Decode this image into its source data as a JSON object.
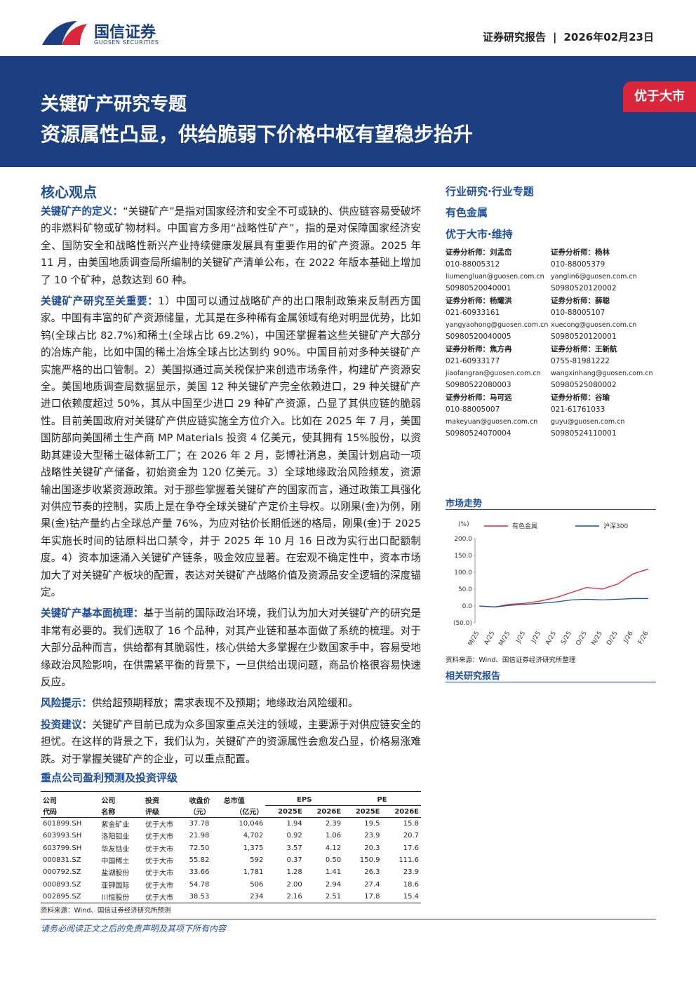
{
  "header": {
    "logo_cn": "国信证券",
    "logo_en": "GUOSEN SECURITIES",
    "report_type": "证券研究报告",
    "date": "2026年02月23日",
    "series_title": "关键矿产研究专题",
    "main_title": "资源属性凸显，供给脆弱下价格中枢有望稳步抬升",
    "rating": "优于大市"
  },
  "core": {
    "title": "核心观点",
    "paragraphs": [
      {
        "label": "关键矿产的定义：",
        "text": "“关键矿产”是指对国家经济和安全不可或缺的、供应链容易受破坏的非燃料矿物或矿物材料。中国官方多用“战略性矿产”，指的是对保障国家经济安全、国防安全和战略性新兴产业持续健康发展具有重要作用的矿产资源。2025 年 11 月，由美国地质调查局所编制的关键矿产清单公布，在 2022 年版本基础上增加了 10 个矿种，总数达到 60 种。"
      },
      {
        "label": "关键矿产研究至关重要：",
        "text": "1）中国可以通过战略矿产的出口限制政策来反制西方国家。中国有丰富的矿产资源储量，尤其是在多种稀有金属领域有绝对明显优势，比如钨(全球占比 82.7%)和稀土(全球占比 69.2%)，中国还掌握着这些关键矿产大部分的冶炼产能，比如中国的稀土冶炼全球占比达到约 90%。中国目前对多种关键矿产实施严格的出口管制。2）美国拟通过高关税保护来创造市场条件，构建矿产资源安全。美国地质调查局数据显示，美国 12 种关键矿产完全依赖进口，29 种关键矿产进口依赖度超过 50%，其从中国至少进口 29 种矿产资源，凸显了其供应链的脆弱性。目前美国政府对关键矿产供应链实施全方位介入。比如在 2025 年 7 月，美国国防部向美国稀土生产商 MP Materials 投资 4 亿美元，使其拥有 15%股份，以资助其建设大型稀土磁体新工厂；在 2026 年 2 月，彭博社消息，美国计划启动一项战略性关键矿产储备，初始资金为 120 亿美元。3）全球地缘政治风险频发，资源输出国逐步收紧资源政策。对于那些掌握着关键矿产的国家而言，通过政策工具强化对供应节奏的控制，实质上是在争夺全球关键矿产定价主导权。以刚果(金)为例，刚果(金)钴产量约占全球总产量 76%，为应对钴价长期低迷的格局，刚果(金)于 2025 年实施长时间的钴原料出口禁令，并于 2025 年 10 月 16 日改为实行出口配额制度。4）资本加速涌入关键矿产链条，吸金效应显著。在宏观不确定性中，资本市场加大了对关键矿产板块的配置，表达对关键矿产战略价值及资源品安全逻辑的深度锚定。"
      },
      {
        "label": "关键矿产基本面梳理：",
        "text": "基于当前的国际政治环境，我们认为加大对关键矿产的研究是非常有必要的。我们选取了 16 个品种，对其产业链和基本面做了系统的梳理。对于大部分品种而言，供给都有其脆弱性，核心供给大多掌握在少数国家手中，容易受地缘政治风险影响，在供需紧平衡的背景下，一旦供给出现问题，商品价格很容易快速反应。"
      },
      {
        "label": "风险提示：",
        "text": "供给超预期释放；需求表现不及预期；地缘政治风险缓和。"
      },
      {
        "label": "投资建议：",
        "text": "关键矿产目前已成为众多国家重点关注的领域，主要源于对供应链安全的担忧。在这样的背景之下，我们认为，关键矿产的资源属性会愈发凸显，价格易涨难跌。对于掌握关键矿产的企业，可以重点配置。"
      }
    ]
  },
  "sidebar": {
    "category": "行业研究·行业专题",
    "industry": "有色金属",
    "rating": "优于大市·维持",
    "analysts": [
      {
        "label": "证券分析师：",
        "name": "刘孟峦",
        "phone": "010-88005312",
        "email": "liumengluan@guosen.com.cn",
        "id": "S0980520040001"
      },
      {
        "label": "证券分析师：",
        "name": "杨林",
        "phone": "010-88005379",
        "email": "yanglin6@guosen.com.cn",
        "id": "S0980520120002"
      },
      {
        "label": "证券分析师：",
        "name": "杨耀洪",
        "phone": "021-60933161",
        "email": "yangyaohong@guosen.com.cn",
        "id": "S0980520040005"
      },
      {
        "label": "证券分析师：",
        "name": "薛聪",
        "phone": "010-88005107",
        "email": "xuecong@guosen.com.cn",
        "id": "S0980520120001"
      },
      {
        "label": "证券分析师：",
        "name": "焦方冉",
        "phone": "021-60933177",
        "email": "jiaofangran@guosen.com.cn",
        "id": "S0980522080003"
      },
      {
        "label": "证券分析师：",
        "name": "王新航",
        "phone": "0755-81981222",
        "email": "wangxinhang@guosen.com.cn",
        "id": "S0980525080002"
      },
      {
        "label": "证券分析师：",
        "name": "马可远",
        "phone": "010-88005007",
        "email": "makeyuan@guosen.com.cn",
        "id": "S0980524070004"
      },
      {
        "label": "证券分析师：",
        "name": "谷瑜",
        "phone": "021-61761033",
        "email": "guyu@guosen.com.cn",
        "id": "S0980524110001"
      }
    ],
    "chart_heading": "市场走势",
    "chart_source": "资料来源：Wind、国信证券经济研究所整理",
    "related_heading": "相关研究报告"
  },
  "chart_data": {
    "type": "line",
    "y_label": "(%)",
    "categories": [
      "M/25",
      "A/25",
      "M/25",
      "J/25",
      "J/25",
      "A/25",
      "S/25",
      "O/25",
      "N/25",
      "D/25",
      "J/26",
      "F/26"
    ],
    "series": [
      {
        "name": "有色金属",
        "color": "#d9263a",
        "values": [
          0,
          -3,
          5,
          8,
          15,
          25,
          40,
          55,
          50,
          65,
          95,
          110
        ]
      },
      {
        "name": "沪深300",
        "color": "#1f4e96",
        "values": [
          0,
          -3,
          2,
          5,
          8,
          12,
          18,
          20,
          18,
          20,
          22,
          22
        ]
      }
    ],
    "ylim": [
      -50,
      200
    ],
    "yticks": [
      {
        "value": -50,
        "label": "(50.0)"
      },
      {
        "value": 0,
        "label": "0.0"
      },
      {
        "value": 50,
        "label": "50.0"
      },
      {
        "value": 100,
        "label": "100.0"
      },
      {
        "value": 150,
        "label": "150.0"
      },
      {
        "value": 200,
        "label": "200.0"
      }
    ]
  },
  "table": {
    "title": "重点公司盈利预测及投资评级",
    "header_top": [
      "公司",
      "公司",
      "投资",
      "收盘价",
      "总市值",
      "EPS",
      "PE"
    ],
    "header_bottom": [
      "代码",
      "名称",
      "评级",
      "（元）",
      "（亿元）",
      "2025E",
      "2026E",
      "2025E",
      "2026E"
    ],
    "rows": [
      [
        "601899.SH",
        "紫金矿业",
        "优于大市",
        "37.78",
        "10,046",
        "1.94",
        "2.39",
        "19.5",
        "15.8"
      ],
      [
        "603993.SH",
        "洛阳钼业",
        "优于大市",
        "21.98",
        "4,702",
        "0.92",
        "1.06",
        "23.9",
        "20.7"
      ],
      [
        "603799.SH",
        "华友钴业",
        "优于大市",
        "72.50",
        "1,375",
        "3.57",
        "4.12",
        "20.3",
        "17.6"
      ],
      [
        "000831.SZ",
        "中国稀土",
        "优于大市",
        "55.82",
        "592",
        "0.37",
        "0.50",
        "150.9",
        "111.6"
      ],
      [
        "000792.SZ",
        "盐湖股份",
        "优于大市",
        "33.66",
        "1,781",
        "1.28",
        "1.41",
        "26.3",
        "23.9"
      ],
      [
        "000893.SZ",
        "亚钾国际",
        "优于大市",
        "54.78",
        "506",
        "2.00",
        "2.94",
        "27.4",
        "18.6"
      ],
      [
        "002895.SZ",
        "川恒股份",
        "优于大市",
        "38.53",
        "234",
        "2.16",
        "2.51",
        "17.8",
        "15.4"
      ]
    ],
    "source": "资料来源：Wind、国信证券经济研究所预测"
  },
  "footer": "请务必阅读正文之后的免责声明及其项下所有内容"
}
